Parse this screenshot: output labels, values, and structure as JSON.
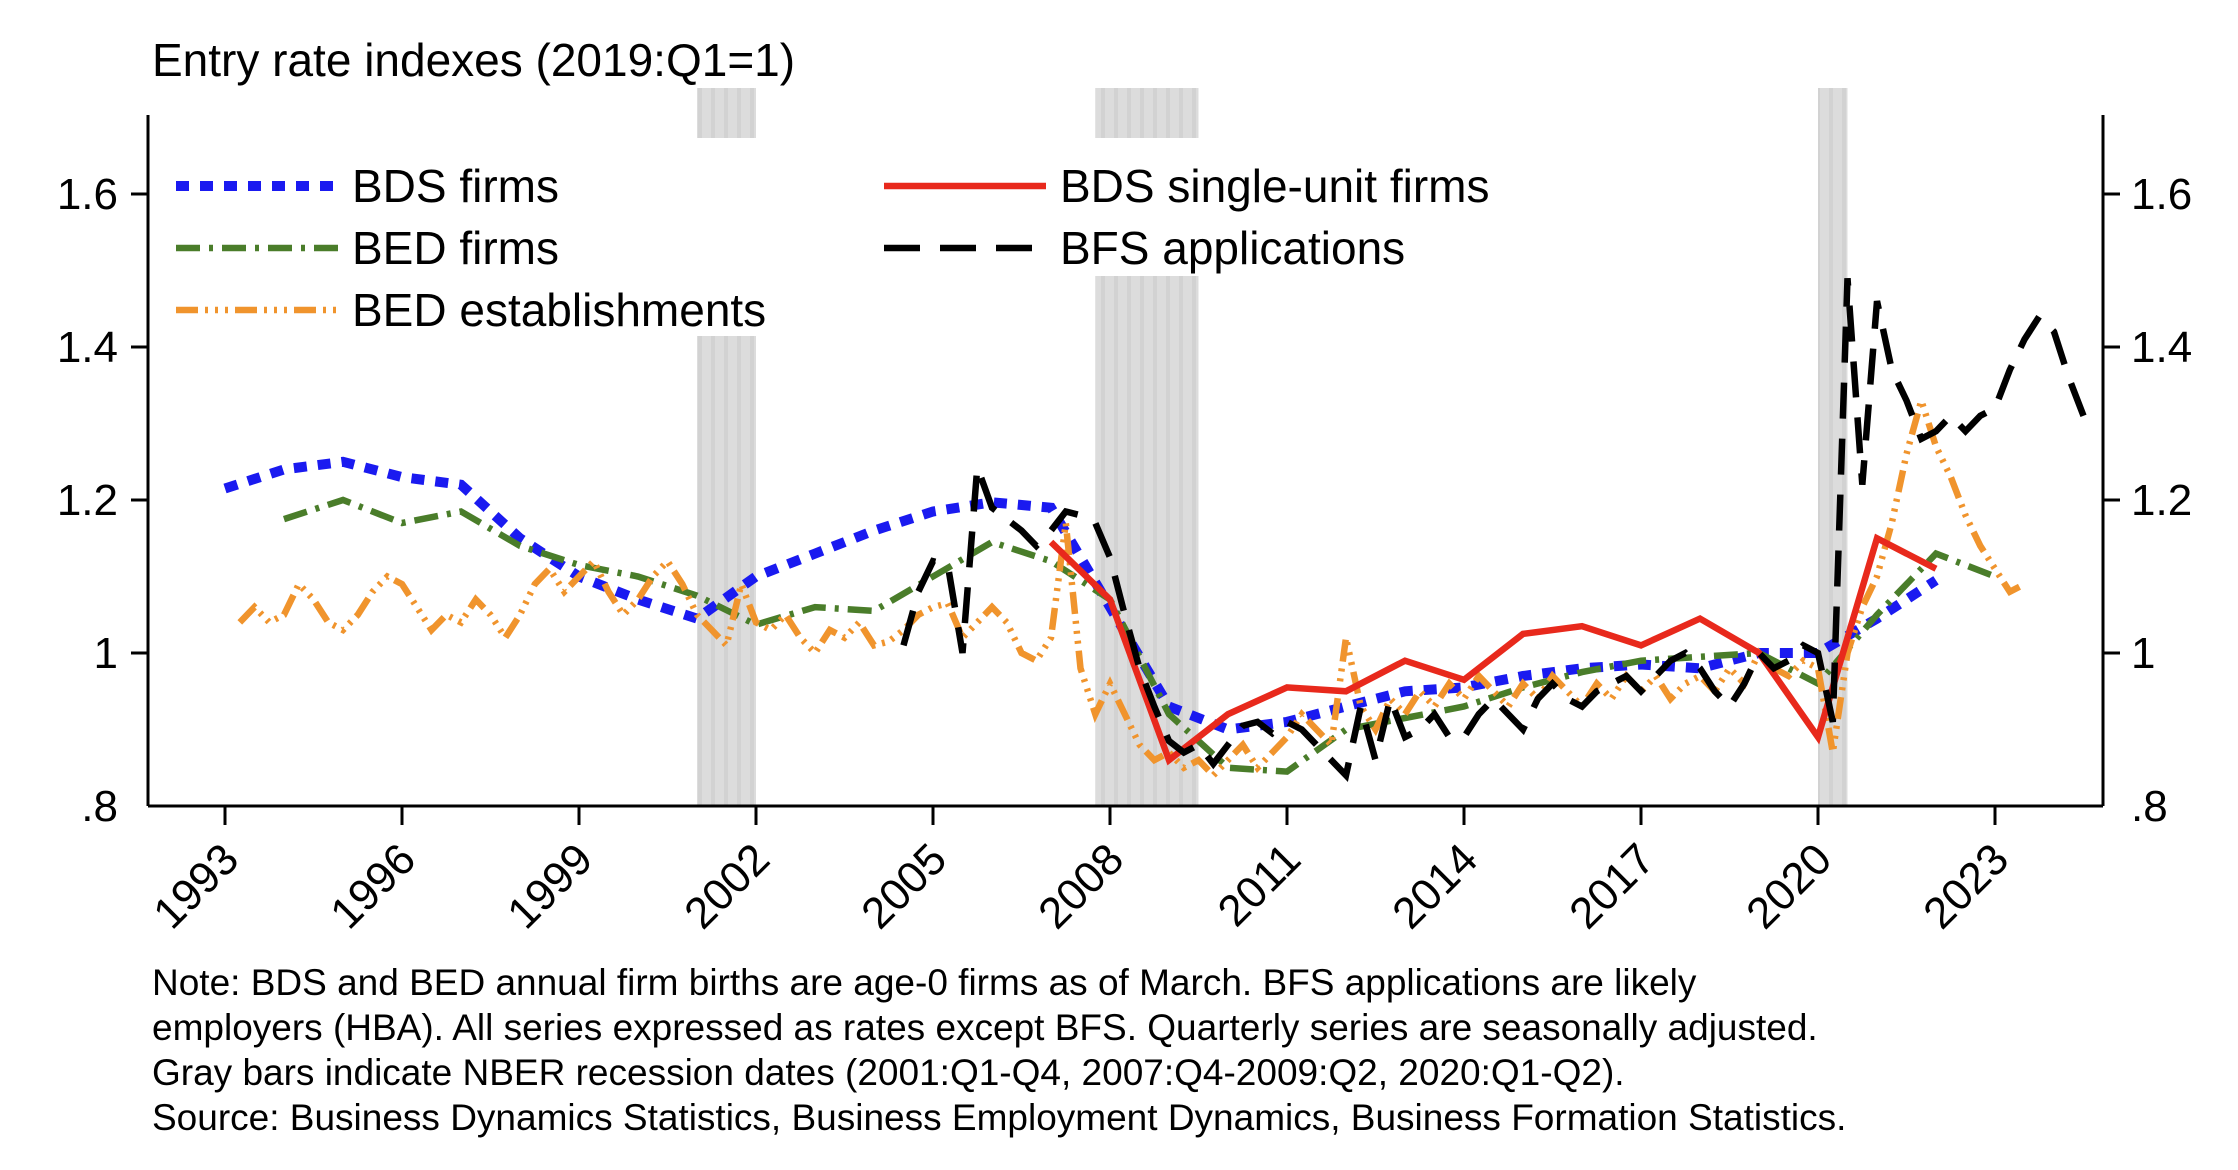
{
  "title": "Entry rate indexes (2019:Q1=1)",
  "notes": [
    "Note: BDS and BED annual firm births are age-0 firms as of March. BFS applications are likely",
    "employers (HBA). All series expressed as rates except BFS. Quarterly series are seasonally adjusted.",
    "Gray bars indicate NBER recession dates (2001:Q1-Q4, 2007:Q4-2009:Q2, 2020:Q1-Q2).",
    "Source: Business Dynamics Statistics, Business Employment Dynamics, Business Formation Statistics."
  ],
  "legend": {
    "columns": [
      {
        "items": [
          {
            "label": "BDS firms",
            "series": "bds_firms"
          },
          {
            "label": "BED firms",
            "series": "bed_firms"
          },
          {
            "label": "BED establishments",
            "series": "bed_establishments"
          }
        ]
      },
      {
        "items": [
          {
            "label": "BDS single-unit firms",
            "series": "bds_single_unit_firms"
          },
          {
            "label": "BFS applications",
            "series": "bfs_applications"
          }
        ]
      }
    ]
  },
  "colors": {
    "recession_light": "#dcdcdc",
    "recession_dark": "#d2d2d2",
    "axis": "#000000",
    "background": "#ffffff"
  },
  "chart_data": {
    "type": "line",
    "title": "Entry rate indexes (2019:Q1=1)",
    "xlabel": "",
    "ylabel": "",
    "xlim": [
      1991.7,
      2024.85
    ],
    "ylim": [
      0.8,
      1.703
    ],
    "grid": false,
    "legend_position": "top-inside-two-columns",
    "y_ticks": [
      {
        "label": "1.6",
        "value": 1.6,
        "tick": true
      },
      {
        "label": "1.4",
        "value": 1.4,
        "tick": true
      },
      {
        "label": "1.2",
        "value": 1.2,
        "tick": true
      },
      {
        "label": "1",
        "value": 1.0,
        "tick": true
      },
      {
        "label": ".8",
        "value": 0.8,
        "tick": false
      }
    ],
    "x_ticks": [
      {
        "label": "1993",
        "year": 1993
      },
      {
        "label": "1996",
        "year": 1996
      },
      {
        "label": "1999",
        "year": 1999
      },
      {
        "label": "2002",
        "year": 2002
      },
      {
        "label": "2005",
        "year": 2005
      },
      {
        "label": "2008",
        "year": 2008
      },
      {
        "label": "2011",
        "year": 2011
      },
      {
        "label": "2014",
        "year": 2014
      },
      {
        "label": "2017",
        "year": 2017
      },
      {
        "label": "2020",
        "year": 2020
      },
      {
        "label": "2023",
        "year": 2023
      }
    ],
    "recession_bars": [
      {
        "label": "2001:Q1-Q4",
        "start": 2001.0,
        "end": 2002.0
      },
      {
        "label": "2007:Q4-2009:Q2",
        "start": 2007.75,
        "end": 2009.5
      },
      {
        "label": "2020:Q1-Q2",
        "start": 2020.0,
        "end": 2020.5
      }
    ],
    "series": [
      {
        "id": "bds_firms",
        "name": "BDS firms",
        "color": "#1a1af0",
        "pattern": "square-dot",
        "frequency": "annual",
        "x_start": 1993,
        "x_step": 1,
        "values": [
          1.215,
          1.24,
          1.25,
          1.23,
          1.22,
          1.15,
          1.1,
          1.07,
          1.045,
          1.1,
          1.13,
          1.16,
          1.185,
          1.197,
          1.19,
          1.06,
          0.93,
          0.9,
          0.91,
          0.93,
          0.95,
          0.955,
          0.97,
          0.98,
          0.985,
          0.98,
          1.0,
          1.0,
          1.045,
          1.095
        ]
      },
      {
        "id": "bed_firms",
        "name": "BED firms",
        "color": "#4a7d2a",
        "pattern": "dash-dot",
        "frequency": "annual",
        "x_start": 1994,
        "x_step": 1,
        "values": [
          1.175,
          1.2,
          1.17,
          1.185,
          1.14,
          1.115,
          1.1,
          1.075,
          1.037,
          1.06,
          1.055,
          1.1,
          1.145,
          1.12,
          1.07,
          0.92,
          0.85,
          0.845,
          0.9,
          0.915,
          0.93,
          0.955,
          0.975,
          0.99,
          0.995,
          1.0,
          0.96,
          1.05,
          1.13,
          1.1
        ]
      },
      {
        "id": "bed_establishments",
        "name": "BED establishments",
        "color": "#f0942d",
        "pattern": "dash-dot-dot",
        "frequency": "quarterly",
        "x_start": 1993.25,
        "x_step": 0.25,
        "values": [
          1.04,
          1.06,
          1.04,
          1.05,
          1.09,
          1.07,
          1.04,
          1.03,
          1.05,
          1.08,
          1.1,
          1.09,
          1.06,
          1.03,
          1.05,
          1.04,
          1.07,
          1.05,
          1.02,
          1.05,
          1.09,
          1.11,
          1.08,
          1.1,
          1.12,
          1.08,
          1.05,
          1.07,
          1.1,
          1.12,
          1.09,
          1.05,
          1.03,
          1.01,
          1.09,
          1.04,
          1.03,
          1.05,
          1.02,
          1.0,
          1.03,
          1.02,
          1.04,
          1.01,
          1.015,
          1.03,
          1.05,
          1.06,
          1.065,
          1.02,
          1.04,
          1.06,
          1.04,
          1.0,
          0.99,
          1.02,
          1.17,
          0.98,
          0.92,
          0.96,
          0.92,
          0.88,
          0.86,
          0.87,
          0.85,
          0.86,
          0.84,
          0.86,
          0.88,
          0.85,
          0.87,
          0.89,
          0.92,
          0.9,
          0.88,
          1.02,
          0.93,
          0.9,
          0.94,
          0.92,
          0.95,
          0.93,
          0.96,
          0.94,
          0.97,
          0.95,
          0.93,
          0.96,
          0.94,
          0.97,
          0.95,
          0.93,
          0.96,
          0.94,
          0.97,
          0.95,
          0.97,
          0.94,
          0.96,
          0.97,
          0.95,
          0.98,
          0.96,
          1.0,
          0.98,
          0.97,
          0.99,
          0.98,
          0.87,
          1.0,
          1.06,
          1.1,
          1.17,
          1.26,
          1.33,
          1.27,
          1.23,
          1.18,
          1.14,
          1.11,
          1.08,
          1.09
        ]
      },
      {
        "id": "bds_single_unit_firms",
        "name": "BDS single-unit firms",
        "color": "#e8291c",
        "pattern": "solid",
        "frequency": "annual",
        "x_start": 2007,
        "x_step": 1,
        "values": [
          1.145,
          1.07,
          0.86,
          0.92,
          0.955,
          0.95,
          0.99,
          0.965,
          1.025,
          1.035,
          1.01,
          1.045,
          1.0,
          0.89,
          1.15,
          1.11
        ]
      },
      {
        "id": "bfs_applications",
        "name": "BFS applications",
        "color": "#000000",
        "pattern": "long-dash",
        "frequency": "quarterly",
        "x_start": 2004.5,
        "x_step": 0.25,
        "values": [
          1.01,
          1.08,
          1.12,
          1.115,
          1.0,
          1.243,
          1.19,
          1.175,
          1.16,
          1.14,
          1.16,
          1.185,
          1.18,
          1.17,
          1.125,
          1.05,
          0.98,
          0.93,
          0.885,
          0.87,
          0.88,
          0.855,
          0.88,
          0.905,
          0.91,
          0.895,
          0.91,
          0.9,
          0.88,
          0.86,
          0.84,
          0.93,
          0.86,
          0.94,
          0.89,
          0.9,
          0.92,
          0.89,
          0.89,
          0.92,
          0.94,
          0.92,
          0.9,
          0.94,
          0.96,
          0.94,
          0.93,
          0.95,
          0.96,
          0.97,
          0.95,
          0.97,
          0.99,
          1.0,
          0.98,
          0.95,
          0.93,
          0.96,
          1.0,
          0.98,
          0.99,
          1.01,
          1.0,
          0.91,
          1.49,
          1.22,
          1.46,
          1.37,
          1.33,
          1.28,
          1.29,
          1.31,
          1.29,
          1.31,
          1.32,
          1.37,
          1.41,
          1.44,
          1.42,
          1.36,
          1.31
        ]
      }
    ]
  }
}
